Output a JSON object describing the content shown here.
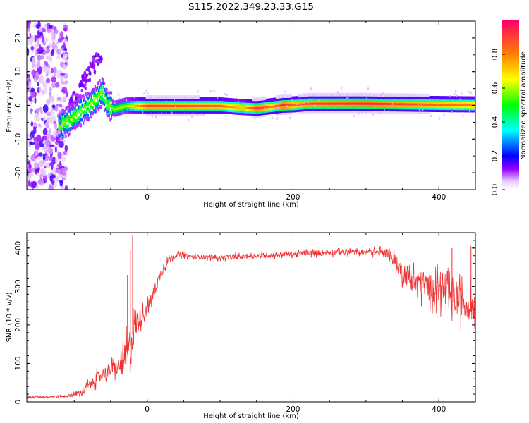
{
  "title": "S115.2022.349.23.33.G15",
  "chart_data": [
    {
      "type": "heatmap",
      "xlabel": "Height of straight line (km)",
      "ylabel": "Frequency (Hz)",
      "xlim": [
        -165,
        450
      ],
      "ylim": [
        -25,
        25
      ],
      "xticks": [
        0,
        200,
        400
      ],
      "yticks": [
        -20,
        -10,
        0,
        10,
        20
      ],
      "colorbar": {
        "label": "Normalized spectral amplitude",
        "range": [
          0,
          1
        ],
        "ticks": [
          0.0,
          0.2,
          0.4,
          0.6,
          0.8
        ]
      },
      "ridge": {
        "x": [
          -120,
          -105,
          -90,
          -75,
          -62,
          -55,
          -45,
          -30,
          0,
          100,
          130,
          150,
          170,
          185,
          200,
          220,
          300,
          400,
          450
        ],
        "freq": [
          -6,
          -4,
          -1.5,
          1,
          4,
          0,
          -1,
          0,
          0,
          0,
          -0.5,
          -0.7,
          -0.2,
          0.2,
          0.3,
          0.7,
          0.7,
          0.4,
          0.3
        ],
        "peak": [
          0.55,
          0.6,
          0.55,
          0.6,
          0.55,
          0.55,
          0.6,
          0.6,
          0.9,
          0.85,
          0.7,
          0.95,
          0.8,
          0.95,
          0.85,
          0.9,
          0.95,
          0.85,
          0.8
        ]
      },
      "noise_region_x": [
        -165,
        -110
      ]
    },
    {
      "type": "line",
      "xlabel": "Height of straight line (km)",
      "ylabel": "SNR (10 * v/v)",
      "xlim": [
        -165,
        450
      ],
      "ylim": [
        0,
        440
      ],
      "xticks": [
        0,
        200,
        400
      ],
      "yticks": [
        0,
        100,
        200,
        300,
        400
      ],
      "series": [
        {
          "color": "#ee3333",
          "envelope": {
            "x": [
              -165,
              -110,
              -90,
              -70,
              -50,
              -40,
              -30,
              -22,
              -18,
              -10,
              0,
              10,
              20,
              30,
              40,
              60,
              100,
              200,
              270,
              300,
              330,
              350,
              370,
              400,
              430,
              450
            ],
            "mean": [
              12,
              15,
              25,
              60,
              85,
              90,
              110,
              150,
              200,
              215,
              240,
              290,
              340,
              372,
              383,
              378,
              375,
              385,
              390,
              390,
              388,
              340,
              310,
              290,
              260,
              250
            ],
            "amp": [
              4,
              5,
              15,
              30,
              30,
              40,
              80,
              100,
              90,
              40,
              35,
              30,
              25,
              15,
              10,
              10,
              10,
              12,
              14,
              12,
              20,
              45,
              60,
              70,
              75,
              70
            ]
          },
          "spikes": [
            {
              "x": -20,
              "y": 435
            },
            {
              "x": -23,
              "y": 395
            },
            {
              "x": -27,
              "y": 330
            },
            {
              "x": 418,
              "y": 400
            },
            {
              "x": 444,
              "y": 405
            }
          ]
        }
      ]
    }
  ]
}
